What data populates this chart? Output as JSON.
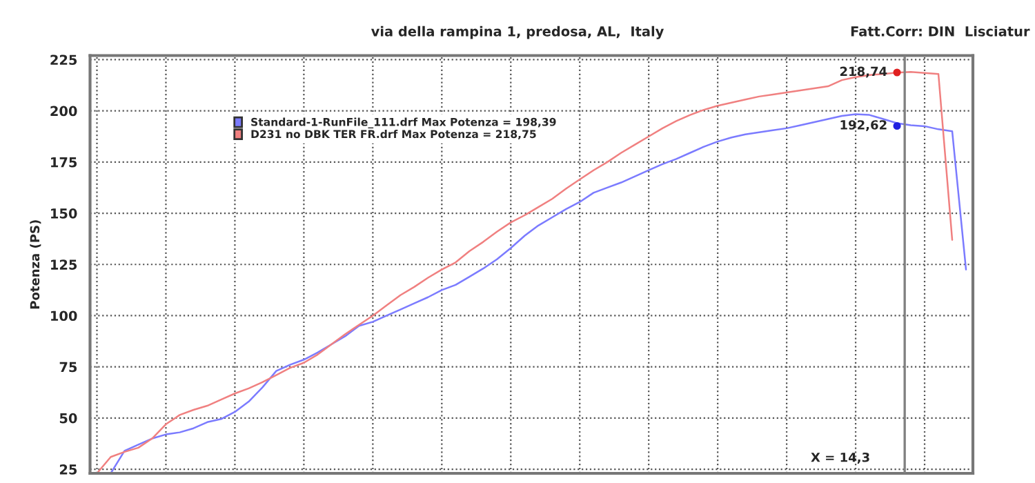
{
  "chart_data": {
    "type": "line",
    "subtitle": "via della rampina 1, predosa, AL,  Italy",
    "ylabel": "Potenza (PS)",
    "annotations": [
      "Fatt.Corr: DIN  Lisciatur",
      "X = 14,3"
    ],
    "categories": [
      null,
      null,
      null,
      null,
      null,
      null,
      null,
      null,
      null,
      null,
      null,
      null,
      null,
      null,
      null,
      null,
      null,
      null,
      null,
      null,
      null,
      null,
      null,
      null,
      null,
      null,
      null,
      null,
      null,
      null,
      null,
      null,
      null,
      null,
      null,
      null,
      null,
      null,
      null,
      null,
      null,
      null,
      null,
      null,
      null,
      null,
      null,
      null,
      null,
      null,
      null,
      null,
      null,
      null,
      null,
      null,
      null,
      null,
      null,
      null,
      null,
      null,
      null,
      null
    ],
    "series": [
      {
        "name": "Standard-1-RunFile_111.drf Max Potenza = 198,39",
        "color": "#7b7bff",
        "values": [
          null,
          23,
          34,
          37,
          40,
          42,
          43,
          45,
          48,
          49.5,
          53,
          58,
          65,
          73,
          76,
          78.5,
          82,
          86,
          90,
          95,
          97,
          100,
          103,
          106,
          109,
          112.5,
          115,
          119,
          123,
          127.5,
          133,
          139,
          144,
          148,
          152,
          155.5,
          160,
          162.5,
          165,
          168,
          171,
          174,
          176.5,
          179.5,
          182.5,
          185,
          187,
          188.5,
          189.5,
          190.5,
          191.5,
          193,
          194.5,
          196,
          197.5,
          198.4,
          198,
          196,
          194,
          193,
          192.5,
          191,
          190,
          122.5
        ]
      },
      {
        "name": "D231 no DBK TER FR.drf Max Potenza = 218,75",
        "color": "#f08080",
        "values": [
          23,
          31,
          33.5,
          35.5,
          40,
          47,
          51.5,
          54,
          56,
          59,
          62,
          64.5,
          67.5,
          71,
          74.5,
          77,
          81,
          86,
          91,
          95.5,
          100,
          105,
          110,
          114,
          118.5,
          122.5,
          126,
          131.5,
          136,
          141,
          145.5,
          149,
          153,
          157,
          162,
          166.5,
          171,
          175,
          179.5,
          183.5,
          187.5,
          191.5,
          195,
          198,
          200.5,
          202.5,
          204,
          205.5,
          207,
          208,
          209,
          210,
          211,
          212,
          215,
          216.5,
          217.5,
          218,
          218.7,
          219,
          218.5,
          218,
          137,
          null
        ]
      },
      {
        "type": "scatter",
        "marker": "circle",
        "color": "#e02020",
        "values": [
          null,
          null,
          null,
          null,
          null,
          null,
          null,
          null,
          null,
          null,
          null,
          null,
          null,
          null,
          null,
          null,
          null,
          null,
          null,
          null,
          null,
          null,
          null,
          null,
          null,
          null,
          null,
          null,
          null,
          null,
          null,
          null,
          null,
          null,
          null,
          null,
          null,
          null,
          null,
          null,
          null,
          null,
          null,
          null,
          null,
          null,
          null,
          null,
          null,
          null,
          null,
          null,
          null,
          null,
          null,
          null,
          null,
          null,
          218.74,
          null,
          null,
          null,
          null,
          null
        ],
        "value_labels": [
          null,
          null,
          null,
          null,
          null,
          null,
          null,
          null,
          null,
          null,
          null,
          null,
          null,
          null,
          null,
          null,
          null,
          null,
          null,
          null,
          null,
          null,
          null,
          null,
          null,
          null,
          null,
          null,
          null,
          null,
          null,
          null,
          null,
          null,
          null,
          null,
          null,
          null,
          null,
          null,
          null,
          null,
          null,
          null,
          null,
          null,
          null,
          null,
          null,
          null,
          null,
          null,
          null,
          null,
          null,
          null,
          null,
          null,
          "218,74",
          null,
          null,
          null,
          null,
          null
        ]
      },
      {
        "type": "scatter",
        "marker": "circle",
        "color": "#2020e0",
        "values": [
          null,
          null,
          null,
          null,
          null,
          null,
          null,
          null,
          null,
          null,
          null,
          null,
          null,
          null,
          null,
          null,
          null,
          null,
          null,
          null,
          null,
          null,
          null,
          null,
          null,
          null,
          null,
          null,
          null,
          null,
          null,
          null,
          null,
          null,
          null,
          null,
          null,
          null,
          null,
          null,
          null,
          null,
          null,
          null,
          null,
          null,
          null,
          null,
          null,
          null,
          null,
          null,
          null,
          null,
          null,
          null,
          null,
          null,
          192.62,
          null,
          null,
          null,
          null,
          null
        ],
        "value_labels": [
          null,
          null,
          null,
          null,
          null,
          null,
          null,
          null,
          null,
          null,
          null,
          null,
          null,
          null,
          null,
          null,
          null,
          null,
          null,
          null,
          null,
          null,
          null,
          null,
          null,
          null,
          null,
          null,
          null,
          null,
          null,
          null,
          null,
          null,
          null,
          null,
          null,
          null,
          null,
          null,
          null,
          null,
          null,
          null,
          null,
          null,
          null,
          null,
          null,
          null,
          null,
          null,
          null,
          null,
          null,
          null,
          null,
          null,
          "192,62",
          null,
          null,
          null,
          null,
          null
        ]
      }
    ],
    "ylim": [
      23,
      227
    ],
    "yticks": [
      25,
      50,
      75,
      100,
      125,
      150,
      175,
      200,
      225
    ],
    "grid": true,
    "legend": "top left",
    "tick_labels": "y",
    "line_style": "solid",
    "marker": "none"
  }
}
